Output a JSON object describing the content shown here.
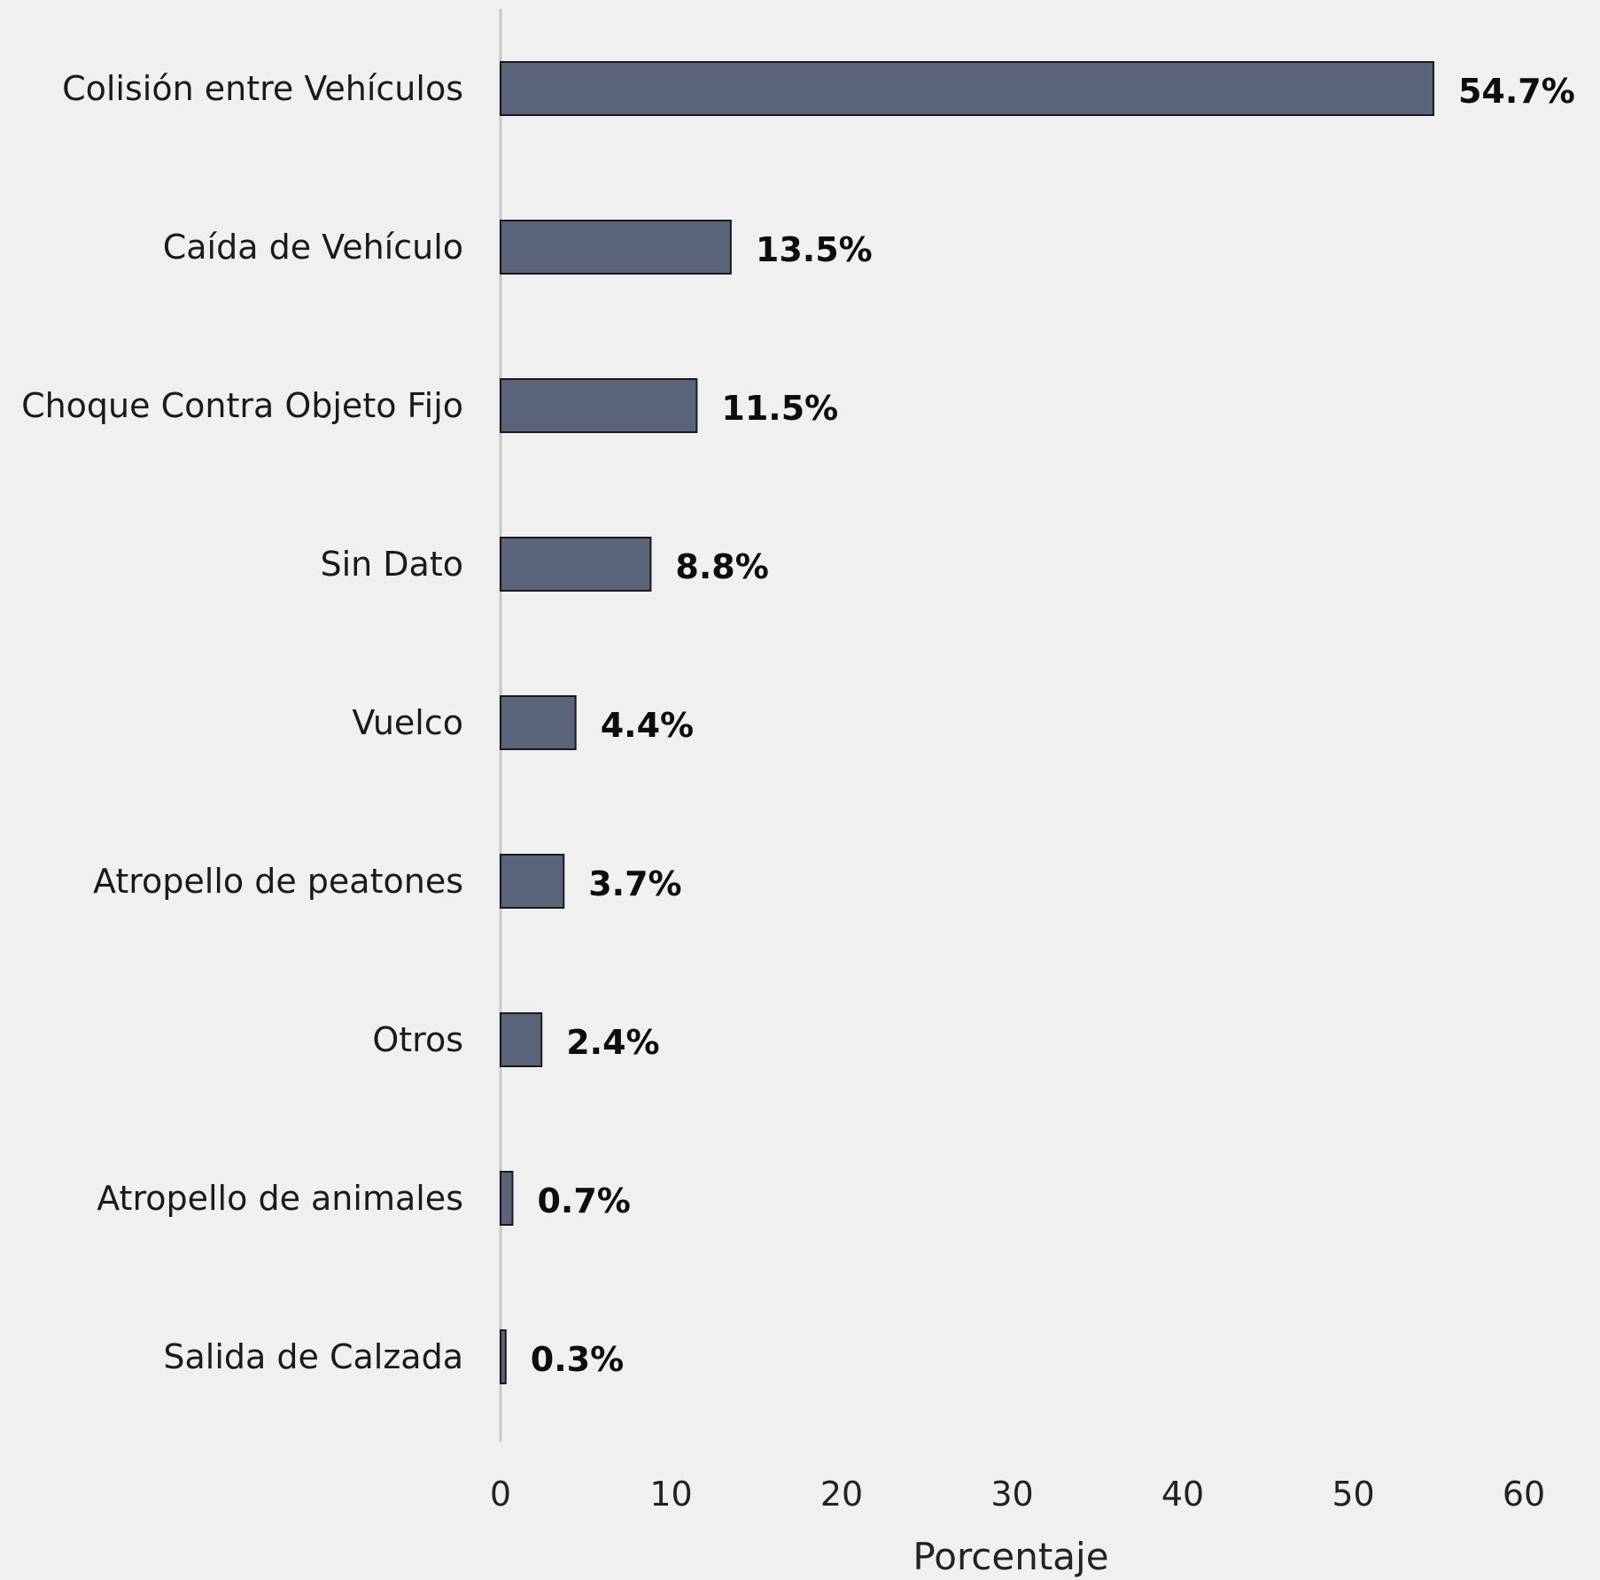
{
  "chart_data": {
    "type": "bar",
    "orientation": "horizontal",
    "categories": [
      "Colisión entre Vehículos",
      "Caída de Vehículo",
      "Choque Contra Objeto Fijo",
      "Sin Dato",
      "Vuelco",
      "Atropello de peatones",
      "Otros",
      "Atropello de animales",
      "Salida de Calzada"
    ],
    "values": [
      54.7,
      13.5,
      11.5,
      8.8,
      4.4,
      3.7,
      2.4,
      0.7,
      0.3
    ],
    "value_labels": [
      "54.7%",
      "13.5%",
      "11.5%",
      "8.8%",
      "4.4%",
      "3.7%",
      "2.4%",
      "0.7%",
      "0.3%"
    ],
    "xlabel": "Porcentaje",
    "xlim": [
      0,
      60
    ],
    "xticks": [
      "0",
      "10",
      "20",
      "30",
      "40",
      "50",
      "60"
    ],
    "grid": false,
    "bar_color": "#596478",
    "bar_edge_color": "#1a1a1a",
    "axis_color": "#c8c8c8",
    "background": "#f0f0f0"
  }
}
